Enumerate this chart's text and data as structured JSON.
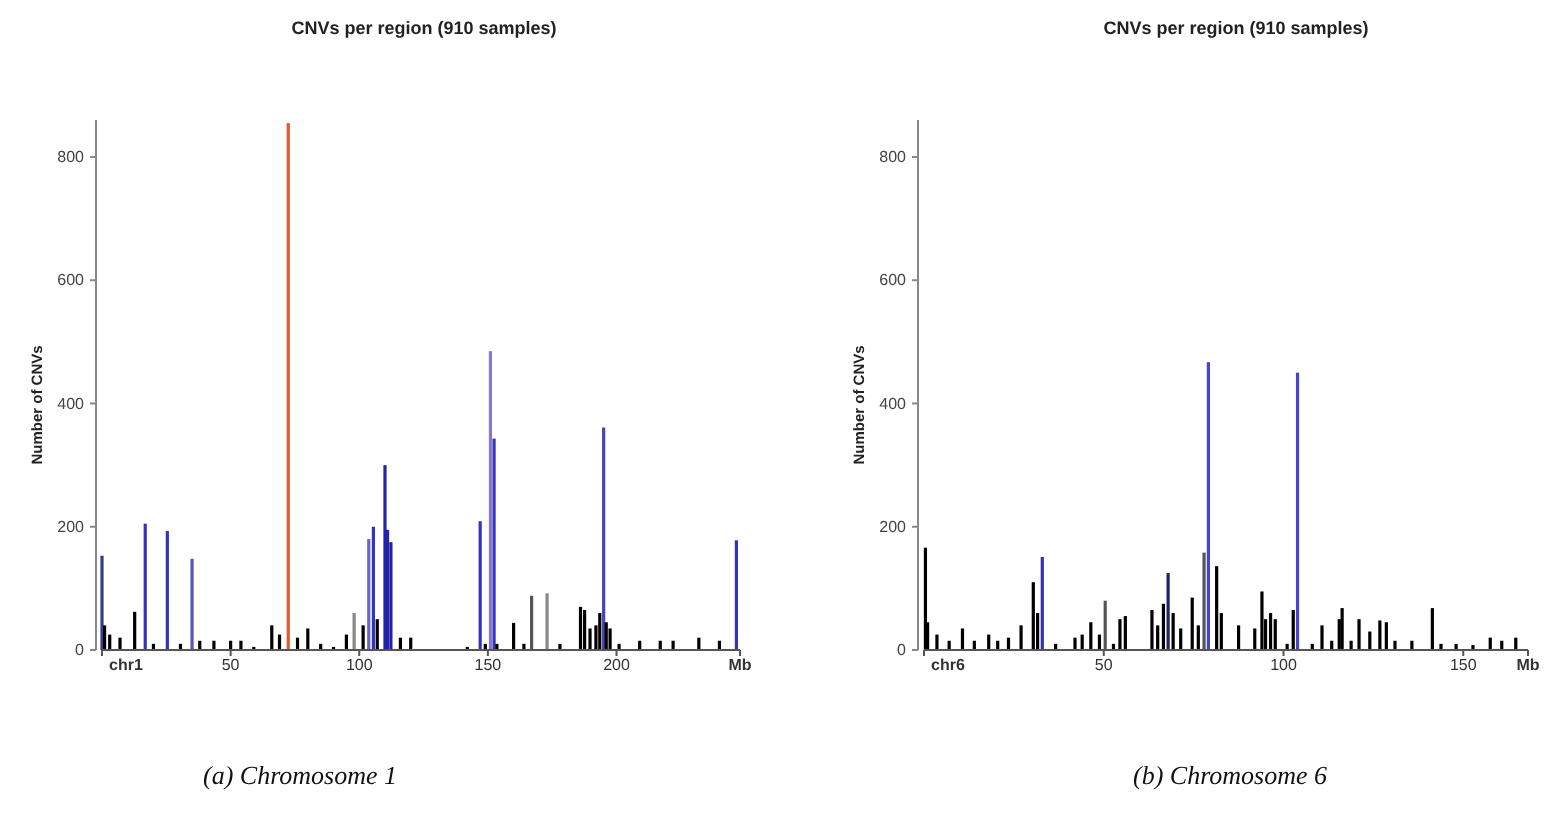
{
  "chart_data": [
    {
      "type": "bar",
      "title": "CNVs per region (910 samples)",
      "ylabel": "Number of CNVs",
      "annotations": [
        "(a) Chromosome 1"
      ],
      "x": [
        0,
        1,
        3,
        7,
        12.7,
        16.8,
        20,
        25.4,
        30.5,
        35,
        38,
        43.5,
        50,
        54,
        59,
        66,
        69,
        72.4,
        76,
        80,
        85,
        90,
        95,
        98,
        101.5,
        103.7,
        105.5,
        107,
        110,
        111,
        112.3,
        116,
        120,
        142,
        147,
        149,
        151,
        152.4,
        153.5,
        160,
        164,
        167,
        173,
        178,
        186,
        187.6,
        189.7,
        192,
        193.5,
        195,
        196,
        197.5,
        201,
        209,
        217,
        222,
        232,
        240,
        246.6
      ],
      "values": [
        153,
        40,
        25,
        20,
        62,
        205,
        10,
        193,
        10,
        148,
        15,
        15,
        15,
        15,
        5,
        40,
        25,
        855,
        20,
        35,
        10,
        5,
        25,
        60,
        40,
        180,
        200,
        50,
        300,
        195,
        175,
        20,
        20,
        5,
        209,
        10,
        485,
        343,
        10,
        44,
        10,
        88,
        92,
        10,
        70,
        65,
        35,
        40,
        60,
        361,
        45,
        35,
        10,
        15,
        15,
        15,
        20,
        15,
        178
      ],
      "colors": [
        "#3a3a8a",
        "#000000",
        "#000000",
        "#000000",
        "#000000",
        "#3333bb",
        "#000000",
        "#3333bb",
        "#000000",
        "#5555bb",
        "#000000",
        "#000000",
        "#000000",
        "#000000",
        "#000000",
        "#000000",
        "#000000",
        "#e05a30",
        "#000000",
        "#000000",
        "#000000",
        "#000000",
        "#000000",
        "#888888",
        "#000000",
        "#6666cc",
        "#3333bb",
        "#000000",
        "#2222aa",
        "#2222aa",
        "#2222aa",
        "#000000",
        "#000000",
        "#000000",
        "#3333bb",
        "#000000",
        "#8877cc",
        "#3333bb",
        "#000000",
        "#000000",
        "#000000",
        "#555555",
        "#888888",
        "#000000",
        "#000000",
        "#000000",
        "#000000",
        "#000000",
        "#000000",
        "#4444bb",
        "#000000",
        "#000000",
        "#000000",
        "#000000",
        "#000000",
        "#000000",
        "#000000",
        "#000000",
        "#3333bb"
      ],
      "xlim": [
        0,
        248
      ],
      "xticks": [
        {
          "value": 0,
          "label": "chr1"
        },
        50,
        100,
        150,
        200,
        {
          "value": 248,
          "label": "Mb"
        }
      ],
      "ylim": [
        0,
        860
      ],
      "yticks": [
        0,
        200,
        400,
        600,
        800
      ],
      "grid": false
    },
    {
      "type": "bar",
      "title": "CNVs per region (910 samples)",
      "ylabel": "Number of CNVs",
      "annotations": [
        "(b) Chromosome 6"
      ],
      "x": [
        0.4,
        1,
        3.6,
        7,
        10.7,
        14,
        18,
        20.5,
        23.5,
        27,
        30.4,
        31.6,
        32.9,
        36.6,
        42,
        44,
        46.4,
        48.8,
        50.4,
        52.7,
        54.5,
        56,
        63.4,
        65,
        66.6,
        67.9,
        69.3,
        71.4,
        74.6,
        76.3,
        77.9,
        79.1,
        81.4,
        82.7,
        87.5,
        92,
        94,
        95,
        96.4,
        97.7,
        101,
        102.7,
        103.9,
        108,
        110.7,
        113.4,
        115.5,
        116.3,
        118.8,
        121,
        124,
        126.8,
        128.6,
        131,
        135.7,
        141.4,
        143.8,
        148,
        152.7,
        157.5,
        160.7,
        164.6
      ],
      "values": [
        166,
        45,
        25,
        15,
        35,
        15,
        25,
        15,
        20,
        40,
        110,
        60,
        151,
        10,
        20,
        25,
        45,
        25,
        80,
        10,
        50,
        55,
        65,
        40,
        75,
        125,
        60,
        35,
        85,
        40,
        158,
        467,
        136,
        60,
        40,
        35,
        95,
        50,
        60,
        50,
        10,
        65,
        450,
        10,
        40,
        15,
        50,
        68,
        15,
        50,
        30,
        48,
        45,
        15,
        15,
        68,
        10,
        10,
        8,
        20,
        15,
        20
      ],
      "colors": [
        "#000000",
        "#000000",
        "#000000",
        "#000000",
        "#000000",
        "#000000",
        "#000000",
        "#000000",
        "#000000",
        "#000000",
        "#000000",
        "#000000",
        "#3333aa",
        "#000000",
        "#000000",
        "#000000",
        "#000000",
        "#000000",
        "#555555",
        "#000000",
        "#000000",
        "#000000",
        "#000000",
        "#000000",
        "#000000",
        "#222266",
        "#000000",
        "#000000",
        "#000000",
        "#000000",
        "#555555",
        "#4444cc",
        "#000000",
        "#000000",
        "#000000",
        "#000000",
        "#000000",
        "#000000",
        "#000000",
        "#000000",
        "#000000",
        "#000000",
        "#4444cc",
        "#000000",
        "#000000",
        "#000000",
        "#000000",
        "#000000",
        "#000000",
        "#000000",
        "#000000",
        "#000000",
        "#000000",
        "#000000",
        "#000000",
        "#000000",
        "#000000",
        "#000000",
        "#000000",
        "#000000",
        "#000000",
        "#000000"
      ],
      "xlim": [
        0,
        168
      ],
      "xticks": [
        {
          "value": 0,
          "label": "chr6"
        },
        50,
        100,
        150,
        {
          "value": 168,
          "label": "Mb"
        }
      ],
      "ylim": [
        0,
        860
      ],
      "yticks": [
        0,
        200,
        400,
        600,
        800
      ],
      "grid": false
    }
  ]
}
